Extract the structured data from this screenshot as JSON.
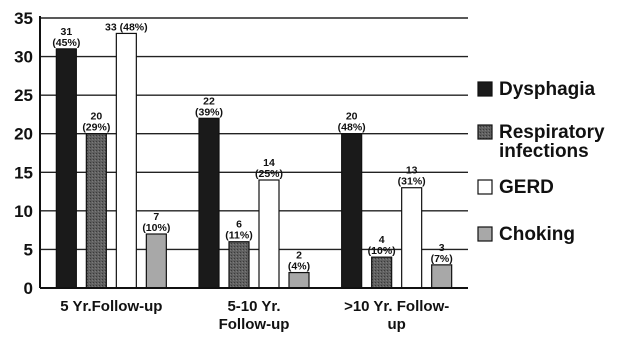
{
  "chart_data": {
    "type": "bar",
    "categories": [
      "5 Yr.Follow-up",
      "5-10 Yr. Follow-up",
      ">10 Yr. Follow-up"
    ],
    "category_lines": [
      [
        "5 Yr.Follow-up"
      ],
      [
        "5-10 Yr.",
        "Follow-up"
      ],
      [
        ">10 Yr. Follow-",
        "up"
      ]
    ],
    "ylim": [
      0,
      35
    ],
    "yticks": [
      0,
      5,
      10,
      15,
      20,
      25,
      30,
      35
    ],
    "grid": true,
    "legend_position": "right",
    "series": [
      {
        "name": "Dysphagia",
        "legend_lines": [
          "Dysphagia"
        ],
        "color": "#1a1a1a",
        "style": "solid",
        "values": [
          31,
          22,
          20
        ],
        "labels": [
          [
            "31",
            "(45%)"
          ],
          [
            "22",
            "(39%)"
          ],
          [
            "20",
            "(48%)"
          ]
        ]
      },
      {
        "name": "Respiratory infections",
        "legend_lines": [
          "Respiratory",
          "infections"
        ],
        "color": "#5f5f5f",
        "style": "textured",
        "values": [
          20,
          6,
          4
        ],
        "labels": [
          [
            "20",
            "(29%)"
          ],
          [
            "6",
            "(11%)"
          ],
          [
            "4",
            "(10%)"
          ]
        ]
      },
      {
        "name": "GERD",
        "legend_lines": [
          "GERD"
        ],
        "color": "#ffffff",
        "style": "outline",
        "values": [
          33,
          14,
          13
        ],
        "labels": [
          [
            "33 (48%)"
          ],
          [
            "14",
            "(25%)"
          ],
          [
            "13",
            "(31%)"
          ]
        ]
      },
      {
        "name": "Choking",
        "legend_lines": [
          "Choking"
        ],
        "color": "#a8a8a8",
        "style": "light",
        "values": [
          7,
          2,
          3
        ],
        "labels": [
          [
            "7",
            "(10%)"
          ],
          [
            "2",
            "(4%)"
          ],
          [
            "3",
            "(7%)"
          ]
        ]
      }
    ]
  }
}
